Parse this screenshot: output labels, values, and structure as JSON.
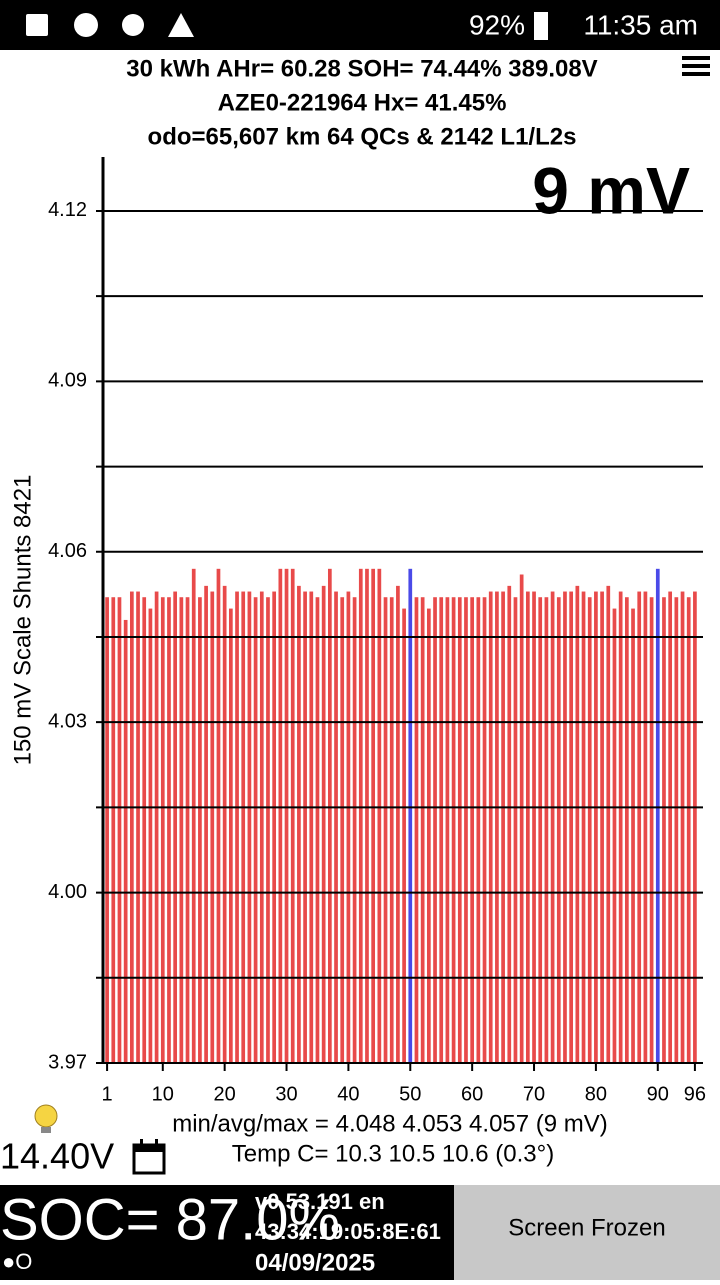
{
  "status_bar": {
    "battery": "92%",
    "time": "11:35 am"
  },
  "header": {
    "line1": "30 kWh  AHr= 60.28 SOH= 74.44% 389.08V",
    "line2": "AZE0-221964   Hx= 41.45%",
    "line3": "odo=65,607 km 64 QCs & 2142 L1/L2s"
  },
  "chart_data": {
    "type": "bar",
    "annotation": "9 mV",
    "y_label": "150 mV Scale   Shunts 8421",
    "x": [
      1,
      2,
      3,
      4,
      5,
      6,
      7,
      8,
      9,
      10,
      11,
      12,
      13,
      14,
      15,
      16,
      17,
      18,
      19,
      20,
      21,
      22,
      23,
      24,
      25,
      26,
      27,
      28,
      29,
      30,
      31,
      32,
      33,
      34,
      35,
      36,
      37,
      38,
      39,
      40,
      41,
      42,
      43,
      44,
      45,
      46,
      47,
      48,
      49,
      50,
      51,
      52,
      53,
      54,
      55,
      56,
      57,
      58,
      59,
      60,
      61,
      62,
      63,
      64,
      65,
      66,
      67,
      68,
      69,
      70,
      71,
      72,
      73,
      74,
      75,
      76,
      77,
      78,
      79,
      80,
      81,
      82,
      83,
      84,
      85,
      86,
      87,
      88,
      89,
      90,
      91,
      92,
      93,
      94,
      95,
      96
    ],
    "values": [
      4.052,
      4.052,
      4.052,
      4.048,
      4.053,
      4.053,
      4.052,
      4.05,
      4.053,
      4.052,
      4.052,
      4.053,
      4.052,
      4.052,
      4.057,
      4.052,
      4.054,
      4.053,
      4.057,
      4.054,
      4.05,
      4.053,
      4.053,
      4.053,
      4.052,
      4.053,
      4.052,
      4.053,
      4.057,
      4.057,
      4.057,
      4.054,
      4.053,
      4.053,
      4.052,
      4.054,
      4.057,
      4.053,
      4.052,
      4.053,
      4.052,
      4.057,
      4.057,
      4.057,
      4.057,
      4.052,
      4.052,
      4.054,
      4.05,
      4.057,
      4.052,
      4.052,
      4.05,
      4.052,
      4.052,
      4.052,
      4.052,
      4.052,
      4.052,
      4.052,
      4.052,
      4.052,
      4.053,
      4.053,
      4.053,
      4.054,
      4.052,
      4.056,
      4.053,
      4.053,
      4.052,
      4.052,
      4.053,
      4.052,
      4.053,
      4.053,
      4.054,
      4.053,
      4.052,
      4.053,
      4.053,
      4.054,
      4.05,
      4.053,
      4.052,
      4.05,
      4.053,
      4.053,
      4.052,
      4.057,
      4.052,
      4.053,
      4.052,
      4.053,
      4.052,
      4.053
    ],
    "color": "#e84a4a",
    "highlight_x": [
      50,
      90
    ],
    "highlight_color": "#4a4ae8",
    "xlim": [
      0.5,
      96.5
    ],
    "xticks": [
      1,
      10,
      20,
      30,
      40,
      50,
      60,
      70,
      80,
      90,
      96
    ],
    "ylim": [
      3.97,
      4.1295
    ],
    "yticks": [
      3.97,
      {
        "value": 4,
        "label": "4.00"
      },
      4.03,
      4.06,
      4.09,
      4.12
    ],
    "minor_yticks": [
      3.985,
      4.015,
      4.045,
      4.075,
      4.105
    ],
    "grid": true
  },
  "stats": {
    "minavgmax": "min/avg/max = 4.048 4.053 4.057  (9 mV)",
    "temp": "Temp C= 10.3  10.5  10.6  (0.3°)",
    "voltage": "14.40V"
  },
  "footer": {
    "soc": "SOC= 87.0%",
    "version": "v0.53.191 en",
    "mac": "43:34:19:05:8E:61",
    "date": "04/09/2025",
    "indicator": "●O",
    "button": "Screen Frozen"
  }
}
